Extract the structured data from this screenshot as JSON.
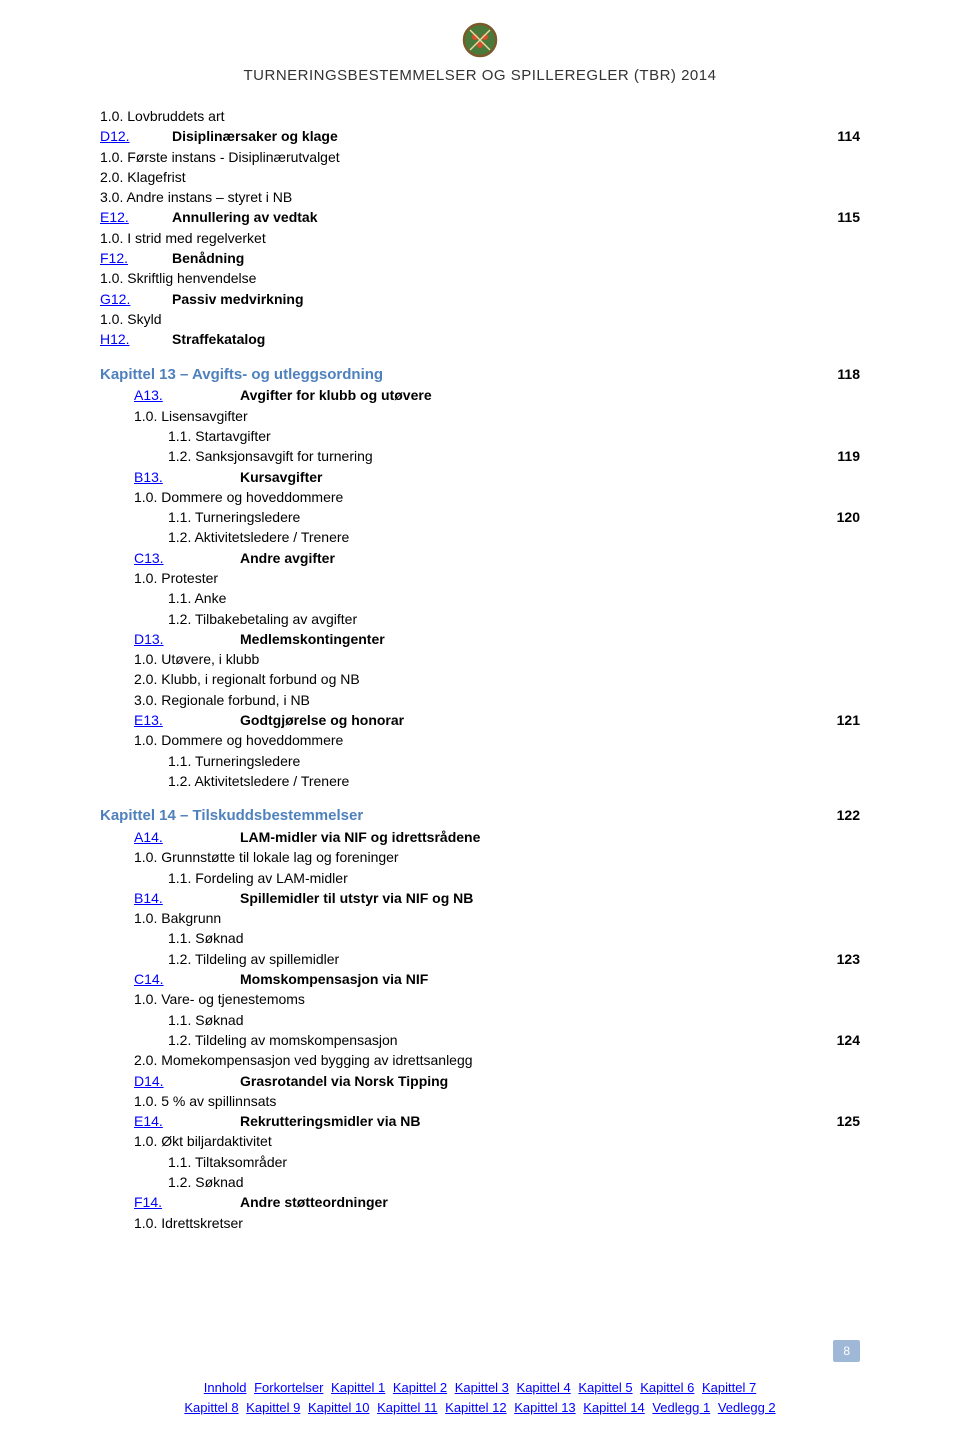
{
  "header": {
    "doc_title": "TURNERINGSBESTEMMELSER OG SPILLEREGLER (TBR) 2014"
  },
  "colors": {
    "link": "#0000ff",
    "section": "#4f81bd",
    "page_box_bg": "#a0b8d8",
    "page_box_fg": "#ffffff",
    "text": "#000000",
    "bg": "#ffffff"
  },
  "lines": [
    {
      "text": "1.0. Lovbruddets art"
    },
    {
      "code": "D12.",
      "label": "Disiplinærsaker og klage",
      "bold": true,
      "link": true,
      "page": "114"
    },
    {
      "text": "1.0. Første instans - Disiplinærutvalget"
    },
    {
      "text": "2.0. Klagefrist"
    },
    {
      "text": "3.0. Andre instans – styret i NB"
    },
    {
      "code": "E12.",
      "label": "Annullering av vedtak",
      "bold": true,
      "link": true,
      "page": "115"
    },
    {
      "text": "1.0. I strid med regelverket"
    },
    {
      "code": "F12.",
      "label": "Benådning",
      "bold": true,
      "link": true
    },
    {
      "text": "1.0. Skriftlig henvendelse"
    },
    {
      "code": "G12.",
      "label": "Passiv medvirkning",
      "bold": true,
      "link": true
    },
    {
      "text": "1.0. Skyld"
    },
    {
      "code": "H12.",
      "label": "Straffekatalog",
      "bold": true,
      "link": true
    },
    {
      "spacer": true
    },
    {
      "section": "Kapittel 13 – Avgifts- og utleggsordning",
      "page": "118"
    },
    {
      "code": "A13.",
      "label": "Avgifter for klubb og utøvere",
      "bold": true,
      "link": true,
      "indent": 1
    },
    {
      "text": "1.0. Lisensavgifter",
      "indent": 1
    },
    {
      "text": "1.1. Startavgifter",
      "indent": 2
    },
    {
      "text": "1.2. Sanksjonsavgift for turnering",
      "indent": 2,
      "page": "119"
    },
    {
      "code": "B13.",
      "label": "Kursavgifter",
      "bold": true,
      "link": true,
      "indent": 1
    },
    {
      "text": "1.0. Dommere og hoveddommere",
      "indent": 1
    },
    {
      "text": "1.1. Turneringsledere",
      "indent": 2,
      "page": "120"
    },
    {
      "text": "1.2. Aktivitetsledere / Trenere",
      "indent": 2
    },
    {
      "code": "C13.",
      "label": "Andre avgifter",
      "bold": true,
      "link": true,
      "indent": 1
    },
    {
      "text": "1.0. Protester",
      "indent": 1
    },
    {
      "text": "1.1. Anke",
      "indent": 2
    },
    {
      "text": "1.2. Tilbakebetaling av avgifter",
      "indent": 2
    },
    {
      "code": "D13.",
      "label": "Medlemskontingenter",
      "bold": true,
      "link": true,
      "indent": 1
    },
    {
      "text": "1.0. Utøvere, i klubb",
      "indent": 1
    },
    {
      "text": "2.0. Klubb, i regionalt forbund og NB",
      "indent": 1
    },
    {
      "text": "3.0. Regionale forbund, i NB",
      "indent": 1
    },
    {
      "code": "E13.",
      "label": "Godtgjørelse og honorar",
      "bold": true,
      "link": true,
      "indent": 1,
      "page": "121"
    },
    {
      "text": "1.0. Dommere og hoveddommere",
      "indent": 1
    },
    {
      "text": "1.1. Turneringsledere",
      "indent": 2
    },
    {
      "text": "1.2. Aktivitetsledere / Trenere",
      "indent": 2
    },
    {
      "spacer": true
    },
    {
      "section": "Kapittel 14 – Tilskuddsbestemmelser",
      "page": "122"
    },
    {
      "code": "A14.",
      "label": "LAM-midler via NIF og idrettsrådene",
      "bold": true,
      "link": true,
      "indent": 1
    },
    {
      "text": "1.0. Grunnstøtte til lokale lag og foreninger",
      "indent": 1
    },
    {
      "text": "1.1. Fordeling av LAM-midler",
      "indent": 2
    },
    {
      "code": "B14.",
      "label": "Spillemidler til utstyr via NIF og NB",
      "bold": true,
      "link": true,
      "indent": 1
    },
    {
      "text": "1.0. Bakgrunn",
      "indent": 1
    },
    {
      "text": "1.1. Søknad",
      "indent": 2
    },
    {
      "text": "1.2. Tildeling av spillemidler",
      "indent": 2,
      "page": "123"
    },
    {
      "code": "C14.",
      "label": "Momskompensasjon via NIF",
      "bold": true,
      "link": true,
      "indent": 1
    },
    {
      "text": "1.0. Vare- og tjenestemoms",
      "indent": 1
    },
    {
      "text": "1.1. Søknad",
      "indent": 2
    },
    {
      "text": "1.2. Tildeling av momskompensasjon",
      "indent": 2,
      "page": "124"
    },
    {
      "text": "2.0. Momekompensasjon ved bygging av idrettsanlegg",
      "indent": 1
    },
    {
      "code": "D14.",
      "label": "Grasrotandel via Norsk Tipping",
      "bold": true,
      "link": true,
      "indent": 1
    },
    {
      "text": "1.0. 5 % av spillinnsats",
      "indent": 1
    },
    {
      "code": "E14.",
      "label": "Rekrutteringsmidler via NB",
      "bold": true,
      "link": true,
      "indent": 1,
      "page": "125"
    },
    {
      "text": "1.0. Økt biljardaktivitet",
      "indent": 1
    },
    {
      "text": "1.1. Tiltaksområder",
      "indent": 2
    },
    {
      "text": "1.2. Søknad",
      "indent": 2
    },
    {
      "code": "F14.",
      "label": "Andre støtteordninger",
      "bold": true,
      "link": true,
      "indent": 1
    },
    {
      "text": "1.0. Idrettskretser",
      "indent": 1
    }
  ],
  "footer": {
    "page_number": "8",
    "links_line1": [
      "Innhold",
      "Forkortelser",
      "Kapittel 1",
      "Kapittel 2",
      "Kapittel 3",
      "Kapittel 4",
      "Kapittel 5",
      "Kapittel 6",
      "Kapittel 7"
    ],
    "links_line2": [
      "Kapittel 8",
      "Kapittel 9",
      "Kapittel 10",
      "Kapittel 11",
      "Kapittel 12",
      "Kapittel 13",
      "Kapittel 14",
      "Vedlegg 1",
      "Vedlegg 2"
    ]
  }
}
